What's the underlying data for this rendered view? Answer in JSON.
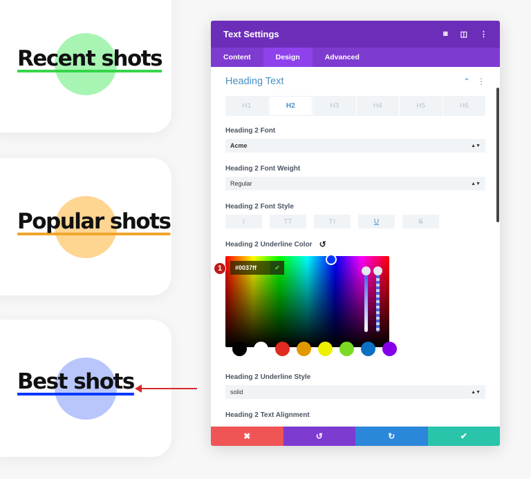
{
  "cards": [
    {
      "title": "Recent shots",
      "circle_color": "#a8f5b3",
      "underline_color": "#35d649"
    },
    {
      "title": "Popular shots",
      "circle_color": "#ffd592",
      "underline_color": "#f0a62b"
    },
    {
      "title": "Best shots",
      "circle_color": "#b8c6fb",
      "underline_color": "#0037ff"
    }
  ],
  "panel": {
    "title": "Text Settings",
    "tabs": [
      "Content",
      "Design",
      "Advanced"
    ],
    "active_tab": "Design",
    "section_title": "Heading Text",
    "heading_levels": [
      "H1",
      "H2",
      "H3",
      "H4",
      "H5",
      "H6"
    ],
    "active_level": "H2",
    "font_label": "Heading 2 Font",
    "font_value": "Acme",
    "weight_label": "Heading 2 Font Weight",
    "weight_value": "Regular",
    "style_label": "Heading 2 Font Style",
    "style_buttons": [
      "I",
      "TT",
      "Tт",
      "U",
      "S"
    ],
    "underline_color_label": "Heading 2 Underline Color",
    "hex_value": "#0037ff",
    "step_badge": "1",
    "swatches": [
      "#000000",
      "#ffffff",
      "#e02b20",
      "#e09900",
      "#edf000",
      "#7cda24",
      "#0c71c3",
      "#8300e9"
    ],
    "underline_style_label": "Heading 2 Underline Style",
    "underline_style_value": "solid",
    "alignment_label": "Heading 2 Text Alignment",
    "footer": {
      "cancel": "✖",
      "undo": "↺",
      "redo": "↻",
      "save": "✔",
      "colors": [
        "#ef5555",
        "#7e3bd0",
        "#2b87da",
        "#29c4a9"
      ]
    }
  }
}
